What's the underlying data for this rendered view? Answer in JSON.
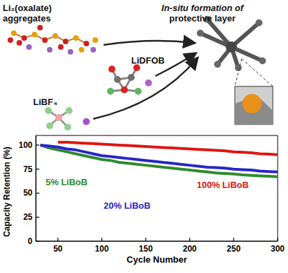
{
  "chart_data": {
    "type": "line",
    "x_label": "Cycle Number",
    "y_label": "Capacity Retention (%)",
    "x": [
      30,
      40,
      50,
      60,
      70,
      80,
      90,
      100,
      110,
      120,
      130,
      140,
      150,
      160,
      170,
      180,
      190,
      200,
      210,
      220,
      230,
      240,
      250,
      260,
      270,
      280,
      290,
      300
    ],
    "series": [
      {
        "name": "5% LiBoB",
        "color": "#2e8b2e",
        "values": [
          100,
          97,
          95,
          93,
          91,
          89,
          87,
          85,
          84,
          82,
          81,
          80,
          79,
          78,
          77,
          76,
          75,
          74,
          73,
          72,
          71,
          70.5,
          70,
          69,
          68.5,
          68,
          67.5,
          67
        ]
      },
      {
        "name": "20% LiBoB",
        "color": "#2626c8",
        "values": [
          100,
          99,
          98,
          96,
          95,
          93,
          91,
          89,
          88,
          87,
          86,
          85,
          84,
          83,
          82,
          81,
          80,
          79,
          78,
          77,
          76.5,
          76,
          75,
          74.5,
          74,
          73,
          72.5,
          72
        ]
      },
      {
        "name": "100% LiBoB",
        "color": "#e01414",
        "values": [
          null,
          null,
          103,
          103,
          102.5,
          102,
          101.5,
          101,
          100.5,
          100,
          99.5,
          99,
          98.5,
          98,
          97.5,
          97,
          96.5,
          96,
          95.5,
          95,
          94.5,
          94,
          93,
          92.5,
          92,
          91,
          90.5,
          90
        ]
      }
    ],
    "xlim": [
      25,
      300
    ],
    "xticks": [
      50,
      100,
      150,
      200,
      250,
      300
    ],
    "ylim": [
      0,
      110
    ],
    "yticks": [
      0,
      25,
      50,
      75,
      100
    ],
    "grid": false
  },
  "diagram": {
    "labels": [
      "Li₂(oxalate)",
      "aggregates",
      "In-situ formation of",
      "protective layer",
      "LiDFOB",
      "LiBF₄"
    ]
  }
}
